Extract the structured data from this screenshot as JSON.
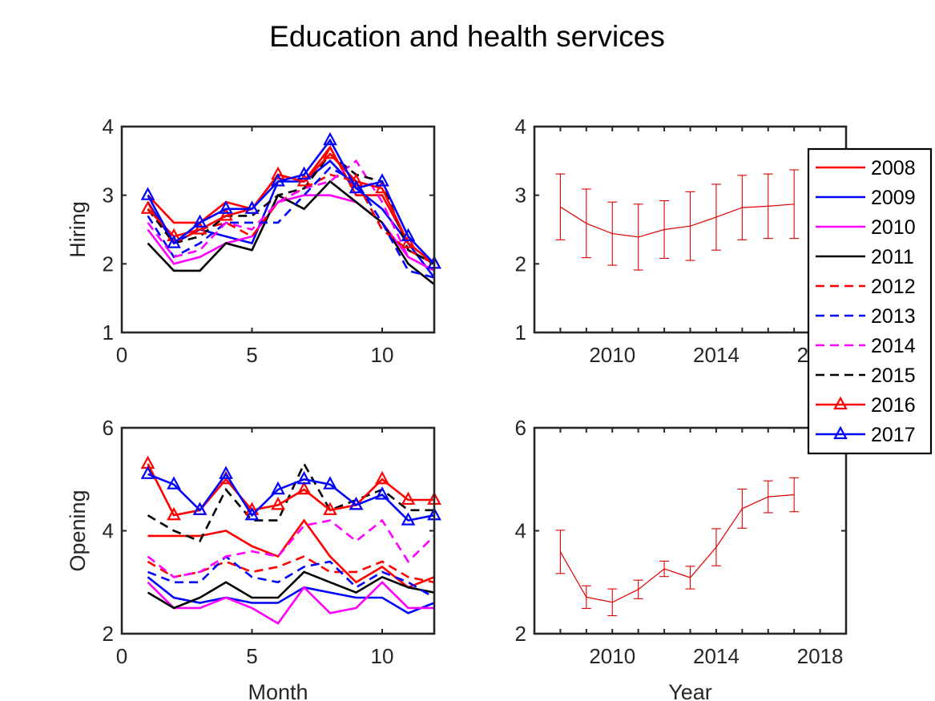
{
  "figure": {
    "title": "Education and health services"
  },
  "legend": {
    "entries": [
      {
        "label": "2008",
        "color": "#ff0000",
        "dash": "solid",
        "marker": "none"
      },
      {
        "label": "2009",
        "color": "#0000ff",
        "dash": "solid",
        "marker": "none"
      },
      {
        "label": "2010",
        "color": "#ff00ff",
        "dash": "solid",
        "marker": "none"
      },
      {
        "label": "2011",
        "color": "#000000",
        "dash": "solid",
        "marker": "none"
      },
      {
        "label": "2012",
        "color": "#ff0000",
        "dash": "dashed",
        "marker": "none"
      },
      {
        "label": "2013",
        "color": "#0000ff",
        "dash": "dashed",
        "marker": "none"
      },
      {
        "label": "2014",
        "color": "#ff00ff",
        "dash": "dashed",
        "marker": "none"
      },
      {
        "label": "2015",
        "color": "#000000",
        "dash": "dashed",
        "marker": "none"
      },
      {
        "label": "2016",
        "color": "#ff0000",
        "dash": "solid",
        "marker": "triangle"
      },
      {
        "label": "2017",
        "color": "#0000ff",
        "dash": "solid",
        "marker": "triangle"
      }
    ]
  },
  "chart_data": [
    {
      "type": "line",
      "xlabel": "",
      "ylabel": "Hiring",
      "xlim": [
        0,
        12
      ],
      "ylim": [
        1,
        4
      ],
      "xticks": [
        0,
        5,
        10
      ],
      "yticks": [
        1,
        2,
        3,
        4
      ],
      "x": [
        1,
        2,
        3,
        4,
        5,
        6,
        7,
        8,
        9,
        10,
        11,
        12
      ],
      "series": [
        {
          "name": "2008",
          "values": [
            3.0,
            2.6,
            2.6,
            2.9,
            2.8,
            3.3,
            3.2,
            3.7,
            3.0,
            3.0,
            2.3,
            2.0
          ]
        },
        {
          "name": "2009",
          "values": [
            2.9,
            2.3,
            2.5,
            2.4,
            2.3,
            3.2,
            3.2,
            3.5,
            3.1,
            2.8,
            2.3,
            1.8
          ]
        },
        {
          "name": "2010",
          "values": [
            2.5,
            2.0,
            2.1,
            2.3,
            2.4,
            2.9,
            3.0,
            3.0,
            2.9,
            2.6,
            2.1,
            1.9
          ]
        },
        {
          "name": "2011",
          "values": [
            2.3,
            1.9,
            1.9,
            2.3,
            2.2,
            3.0,
            2.8,
            3.2,
            2.9,
            2.6,
            2.0,
            1.7
          ]
        },
        {
          "name": "2012",
          "values": [
            2.8,
            2.3,
            2.5,
            2.6,
            2.4,
            2.9,
            3.1,
            3.3,
            3.2,
            2.5,
            2.2,
            2.0
          ]
        },
        {
          "name": "2013",
          "values": [
            2.7,
            2.1,
            2.3,
            2.6,
            2.6,
            2.6,
            3.0,
            3.4,
            3.2,
            2.6,
            1.9,
            1.8
          ]
        },
        {
          "name": "2014",
          "values": [
            2.6,
            2.1,
            2.2,
            2.6,
            2.5,
            2.9,
            3.1,
            3.2,
            3.5,
            2.9,
            2.1,
            1.9
          ]
        },
        {
          "name": "2015",
          "values": [
            2.8,
            2.3,
            2.4,
            2.7,
            2.7,
            3.0,
            3.1,
            3.6,
            3.3,
            3.2,
            2.2,
            2.0
          ]
        },
        {
          "name": "2016",
          "values": [
            2.8,
            2.4,
            2.5,
            2.7,
            2.8,
            3.3,
            3.2,
            3.6,
            3.2,
            3.1,
            2.3,
            2.0
          ]
        },
        {
          "name": "2017",
          "values": [
            3.0,
            2.3,
            2.6,
            2.8,
            2.8,
            3.2,
            3.3,
            3.8,
            3.1,
            3.2,
            2.4,
            2.0
          ]
        }
      ]
    },
    {
      "type": "line",
      "error_bars": true,
      "xlabel": "",
      "ylabel": "",
      "xlim": [
        2007,
        2019
      ],
      "ylim": [
        1,
        4
      ],
      "xticks": [
        2010,
        2014,
        2018
      ],
      "yticks": [
        1,
        2,
        3,
        4
      ],
      "x": [
        2008,
        2009,
        2010,
        2011,
        2012,
        2013,
        2014,
        2015,
        2016,
        2017
      ],
      "series": [
        {
          "values": [
            2.83,
            2.59,
            2.44,
            2.39,
            2.5,
            2.55,
            2.68,
            2.82,
            2.84,
            2.87
          ],
          "errors": [
            0.48,
            0.5,
            0.46,
            0.48,
            0.42,
            0.5,
            0.48,
            0.47,
            0.47,
            0.5
          ]
        }
      ]
    },
    {
      "type": "line",
      "xlabel": "Month",
      "ylabel": "Opening",
      "xlim": [
        0,
        12
      ],
      "ylim": [
        2,
        6
      ],
      "xticks": [
        0,
        5,
        10
      ],
      "yticks": [
        2,
        4,
        6
      ],
      "x": [
        1,
        2,
        3,
        4,
        5,
        6,
        7,
        8,
        9,
        10,
        11,
        12
      ],
      "series": [
        {
          "name": "2008",
          "values": [
            3.9,
            3.9,
            3.9,
            4.0,
            3.7,
            3.5,
            4.2,
            3.5,
            3.0,
            3.3,
            2.9,
            3.1
          ]
        },
        {
          "name": "2009",
          "values": [
            3.1,
            2.7,
            2.6,
            2.7,
            2.6,
            2.6,
            2.9,
            2.8,
            2.7,
            2.7,
            2.4,
            2.6
          ]
        },
        {
          "name": "2010",
          "values": [
            3.0,
            2.5,
            2.5,
            2.7,
            2.5,
            2.2,
            2.9,
            2.4,
            2.5,
            3.0,
            2.5,
            2.5
          ]
        },
        {
          "name": "2011",
          "values": [
            2.8,
            2.5,
            2.7,
            3.0,
            2.7,
            2.7,
            3.2,
            3.0,
            2.8,
            3.1,
            2.9,
            2.8
          ]
        },
        {
          "name": "2012",
          "values": [
            3.4,
            3.1,
            3.2,
            3.4,
            3.2,
            3.3,
            3.5,
            3.2,
            3.2,
            3.4,
            3.1,
            3.0
          ]
        },
        {
          "name": "2013",
          "values": [
            3.2,
            3.0,
            3.0,
            3.5,
            3.1,
            3.0,
            3.3,
            3.4,
            2.9,
            3.2,
            3.0,
            2.7
          ]
        },
        {
          "name": "2014",
          "values": [
            3.5,
            3.1,
            3.2,
            3.5,
            3.6,
            3.5,
            4.1,
            4.2,
            3.8,
            4.2,
            3.4,
            3.9
          ]
        },
        {
          "name": "2015",
          "values": [
            4.3,
            4.0,
            3.8,
            4.8,
            4.2,
            4.2,
            5.3,
            4.4,
            4.6,
            4.8,
            4.4,
            4.4
          ]
        },
        {
          "name": "2016",
          "values": [
            5.3,
            4.3,
            4.4,
            5.0,
            4.4,
            4.5,
            4.8,
            4.4,
            4.5,
            5.0,
            4.6,
            4.6
          ]
        },
        {
          "name": "2017",
          "values": [
            5.1,
            4.9,
            4.4,
            5.1,
            4.3,
            4.8,
            5.0,
            4.9,
            4.5,
            4.7,
            4.2,
            4.3
          ]
        }
      ]
    },
    {
      "type": "line",
      "error_bars": true,
      "xlabel": "Year",
      "ylabel": "",
      "xlim": [
        2007,
        2019
      ],
      "ylim": [
        2,
        6
      ],
      "xticks": [
        2010,
        2014,
        2018
      ],
      "yticks": [
        2,
        4,
        6
      ],
      "x": [
        2008,
        2009,
        2010,
        2011,
        2012,
        2013,
        2014,
        2015,
        2016,
        2017
      ],
      "series": [
        {
          "values": [
            3.59,
            2.71,
            2.61,
            2.86,
            3.26,
            3.09,
            3.68,
            4.43,
            4.66,
            4.7
          ],
          "errors": [
            0.42,
            0.22,
            0.26,
            0.18,
            0.15,
            0.22,
            0.36,
            0.38,
            0.31,
            0.33
          ]
        }
      ]
    }
  ]
}
